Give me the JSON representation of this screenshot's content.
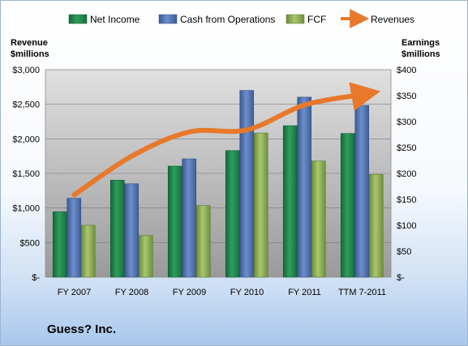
{
  "company": "Guess? Inc.",
  "chart_data": {
    "type": "bar",
    "categories": [
      "FY 2007",
      "FY 2008",
      "FY 2009",
      "FY 2010",
      "FY 2011",
      "TTM 7-2011"
    ],
    "left_axis_title": [
      "Revenue",
      "$millions"
    ],
    "right_axis_title": [
      "Earnings",
      "$millions"
    ],
    "left_ticks": [
      "$3,000",
      "$2,500",
      "$2,000",
      "$1,500",
      "$1,000",
      "$500",
      "$-"
    ],
    "right_ticks": [
      "$400",
      "$350",
      "$300",
      "$250",
      "$200",
      "$150",
      "$100",
      "$50",
      "$-"
    ],
    "ylim_left": [
      0,
      3000
    ],
    "ylim_right": [
      0,
      400
    ],
    "grid": true,
    "legend_position": "top",
    "series": [
      {
        "name": "Net Income",
        "type": "bar",
        "axis": "right",
        "color": "#1e8a4e",
        "values": [
          126,
          187,
          214,
          244,
          292,
          277
        ]
      },
      {
        "name": "Cash from Operations",
        "type": "bar",
        "axis": "right",
        "color": "#4f72b2",
        "values": [
          152,
          180,
          228,
          360,
          347,
          331
        ]
      },
      {
        "name": "FCF",
        "type": "bar",
        "axis": "right",
        "color": "#8eb056",
        "values": [
          100,
          80,
          138,
          278,
          224,
          198
        ]
      },
      {
        "name": "Revenues",
        "type": "line",
        "axis": "left",
        "color": "#e8782a",
        "values": [
          1190,
          1750,
          2100,
          2130,
          2490,
          2640
        ]
      }
    ]
  }
}
